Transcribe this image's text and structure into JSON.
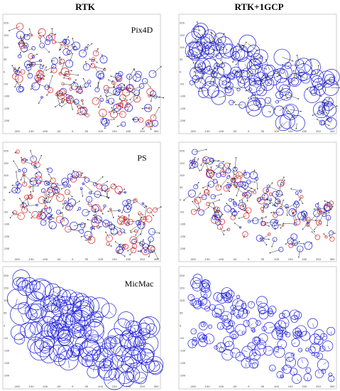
{
  "column_titles": [
    "RTK",
    "RTK+1GCP"
  ],
  "row_labels": [
    "Pix4D",
    "PS",
    "MicMac"
  ],
  "colors": {
    "positive": "#1f1fd9",
    "negative": "#e02020",
    "arrow": "#333333"
  },
  "chart_data": [
    {
      "type": "scatter",
      "row": "Pix4D",
      "column": "RTK",
      "xlim": [
        -230,
        310
      ],
      "ylim": [
        -230,
        230
      ],
      "xticks": [
        -200,
        -150,
        -100,
        -50,
        0,
        50,
        100,
        150,
        200,
        250,
        300
      ],
      "yticks": [
        -200,
        -150,
        -100,
        -50,
        0,
        50,
        100,
        150,
        200
      ],
      "marker_size": "small",
      "red_fraction": 0.45,
      "arrows": true
    },
    {
      "type": "scatter",
      "row": "Pix4D",
      "column": "RTK+1GCP",
      "xlim": [
        -230,
        310
      ],
      "ylim": [
        -230,
        230
      ],
      "xticks": [
        -200,
        -150,
        -100,
        -50,
        0,
        50,
        100,
        150,
        200,
        250,
        300
      ],
      "yticks": [
        -200,
        -150,
        -100,
        -50,
        0,
        50,
        100,
        150,
        200
      ],
      "marker_size": "large",
      "red_fraction": 0.0,
      "arrows": true
    },
    {
      "type": "scatter",
      "row": "PS",
      "column": "RTK",
      "xlim": [
        -230,
        310
      ],
      "ylim": [
        -230,
        230
      ],
      "xticks": [
        -200,
        -150,
        -100,
        -50,
        0,
        50,
        100,
        150,
        200,
        250,
        300
      ],
      "yticks": [
        -200,
        -150,
        -100,
        -50,
        0,
        50,
        100,
        150,
        200
      ],
      "marker_size": "small",
      "red_fraction": 0.4,
      "arrows": true
    },
    {
      "type": "scatter",
      "row": "PS",
      "column": "RTK+1GCP",
      "xlim": [
        -230,
        310
      ],
      "ylim": [
        -230,
        230
      ],
      "xticks": [
        -200,
        -150,
        -100,
        -50,
        0,
        50,
        100,
        150,
        200,
        250,
        300
      ],
      "yticks": [
        -200,
        -150,
        -100,
        -50,
        0,
        50,
        100,
        150,
        200
      ],
      "marker_size": "small",
      "red_fraction": 0.4,
      "arrows": true
    },
    {
      "type": "scatter",
      "row": "MicMac",
      "column": "RTK",
      "xlim": [
        -230,
        310
      ],
      "ylim": [
        -230,
        230
      ],
      "xticks": [
        -200,
        -150,
        -100,
        -50,
        0,
        50,
        100,
        150,
        200,
        250,
        300
      ],
      "yticks": [
        -200,
        -150,
        -100,
        -50,
        0,
        50,
        100,
        150,
        200
      ],
      "marker_size": "huge",
      "red_fraction": 0.0,
      "arrows": false
    },
    {
      "type": "scatter",
      "row": "MicMac",
      "column": "RTK+1GCP",
      "xlim": [
        -230,
        310
      ],
      "ylim": [
        -230,
        230
      ],
      "xticks": [
        -200,
        -150,
        -100,
        -50,
        0,
        50,
        100,
        150,
        200,
        250,
        300
      ],
      "yticks": [
        -200,
        -150,
        -100,
        -50,
        0,
        50,
        100,
        150,
        200
      ],
      "marker_size": "medium",
      "red_fraction": 0.0,
      "arrows": false
    }
  ]
}
